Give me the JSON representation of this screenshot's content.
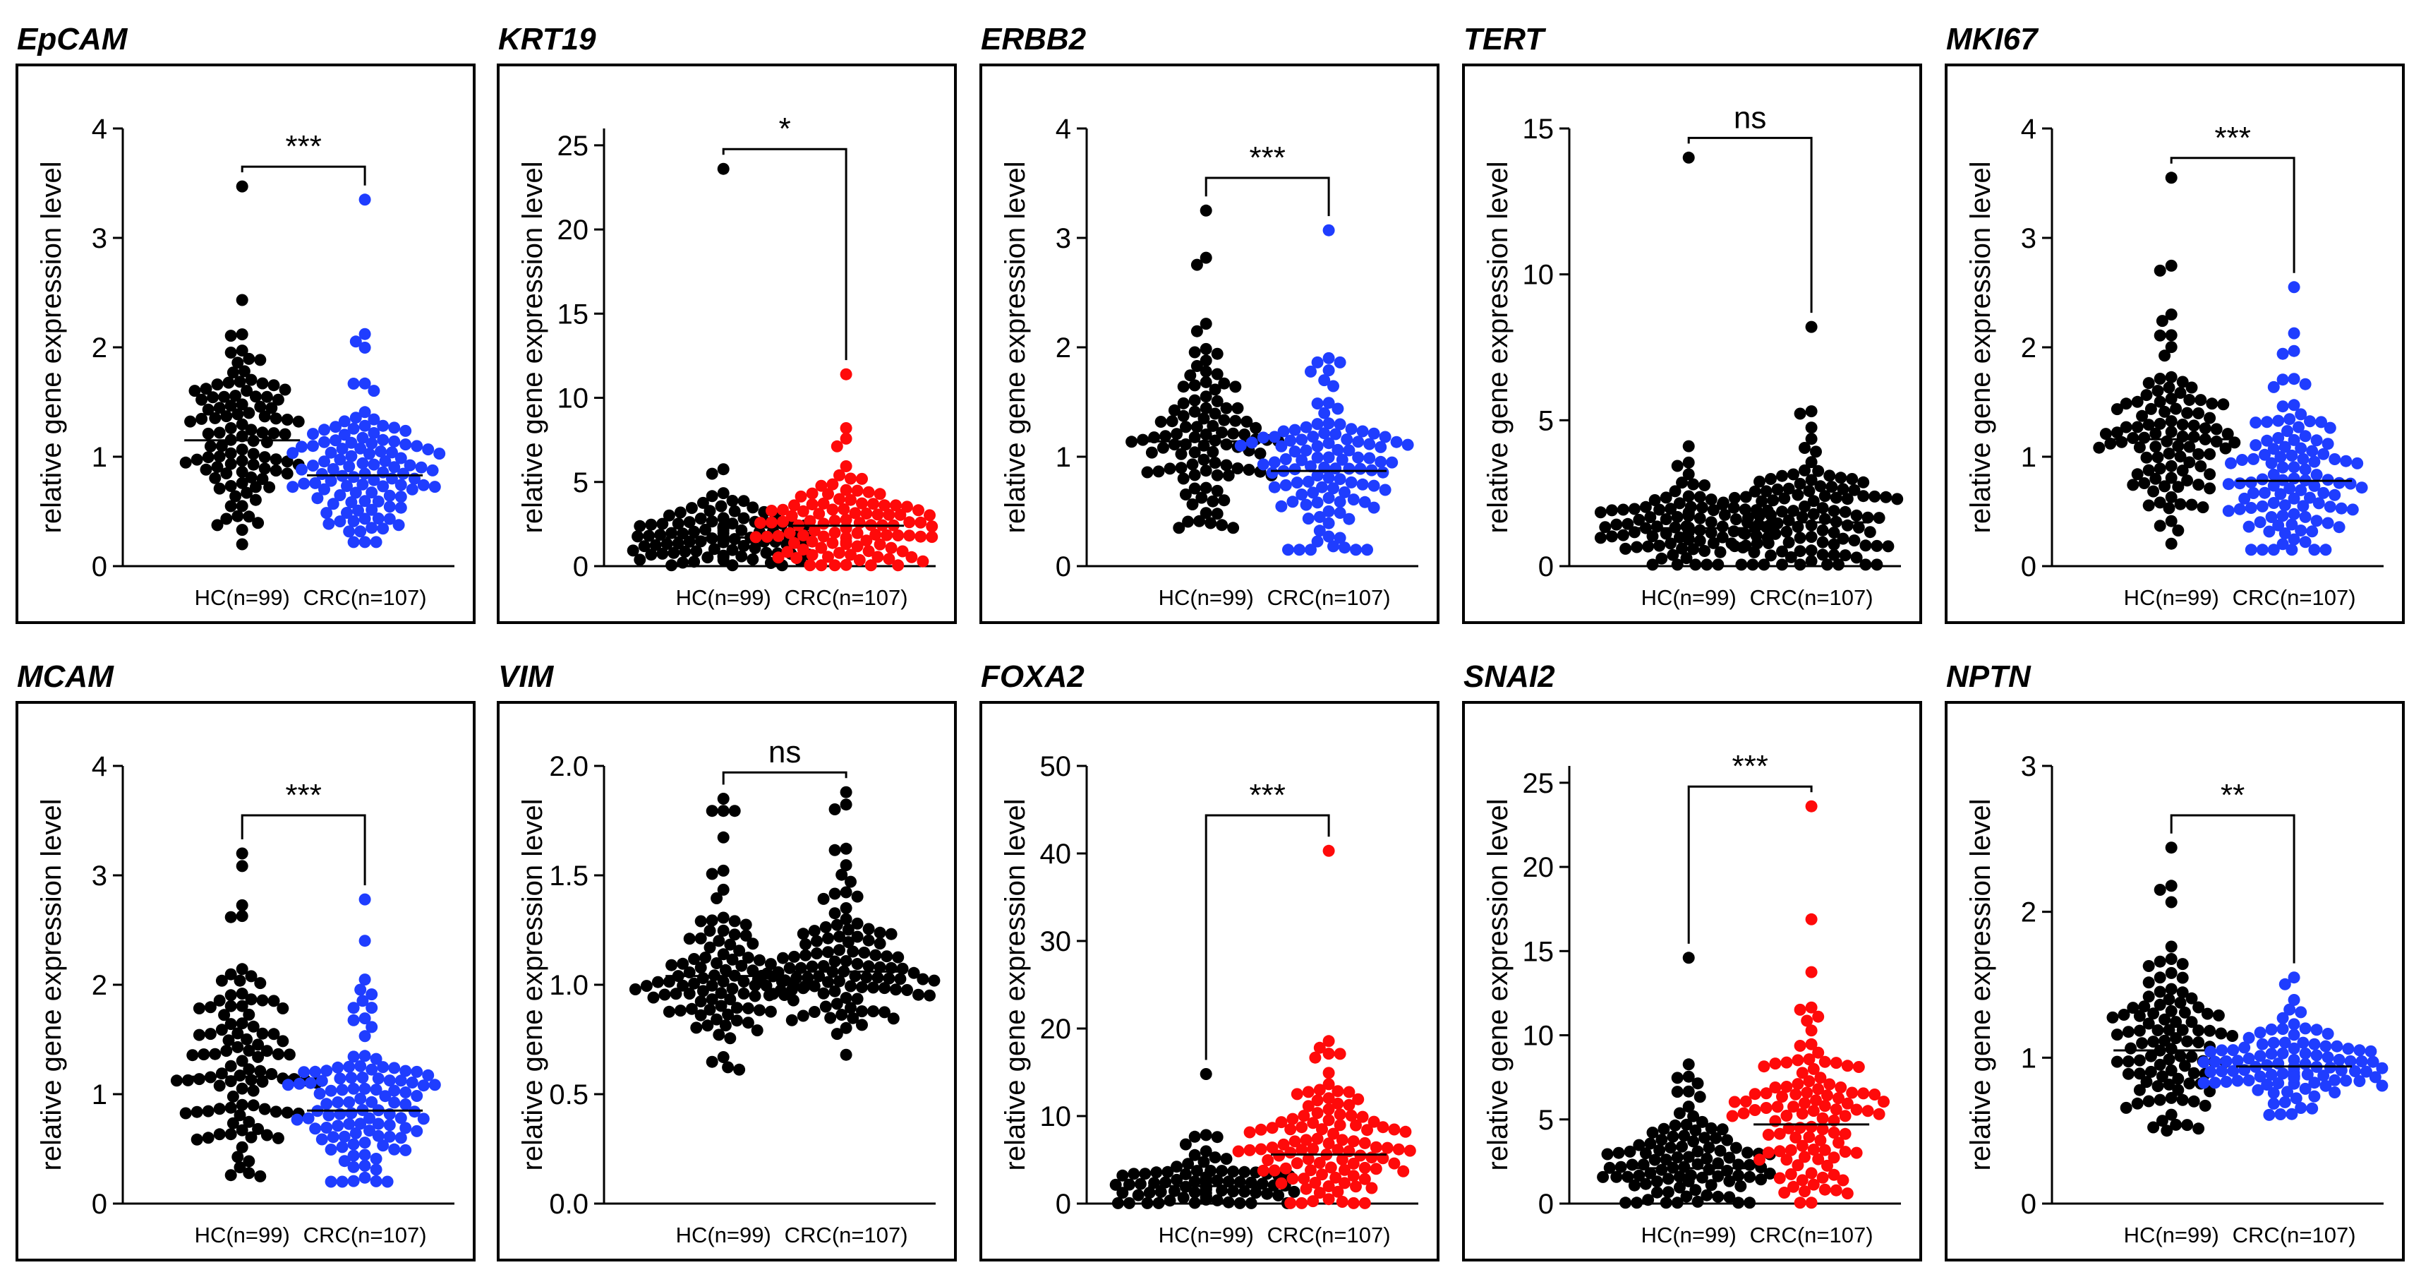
{
  "figure": {
    "background": "#ffffff"
  },
  "colors": {
    "hc": "#000000",
    "blue": "#1f3dff",
    "red": "#ff0a0a"
  },
  "chart_data": [
    {
      "gene": "EpCAM",
      "type": "scatter",
      "ylabel": "relative gene expression level",
      "ylim": [
        0,
        4
      ],
      "ticks": [
        "0",
        "1",
        "2",
        "3",
        "4"
      ],
      "significance": "***",
      "groups": [
        {
          "label": "HC(n=99)",
          "n": 99,
          "mean": 1.15,
          "spread": 0.42,
          "min": 0.2,
          "max": 3.47,
          "color": "#000000"
        },
        {
          "label": "CRC(n=107)",
          "n": 107,
          "mean": 0.83,
          "spread": 0.38,
          "min": 0.22,
          "max": 3.35,
          "color": "#1f3dff"
        }
      ]
    },
    {
      "gene": "KRT19",
      "type": "scatter",
      "ylabel": "relative gene expression level",
      "ylim": [
        0,
        26
      ],
      "ticks": [
        "0",
        "5",
        "10",
        "15",
        "20",
        "25"
      ],
      "significance": "*",
      "groups": [
        {
          "label": "HC(n=99)",
          "n": 99,
          "mean": 1.7,
          "spread": 1.1,
          "min": 0.05,
          "max": 23.6,
          "color": "#000000"
        },
        {
          "label": "CRC(n=107)",
          "n": 107,
          "mean": 2.4,
          "spread": 1.6,
          "min": 0.05,
          "max": 11.4,
          "color": "#ff0a0a"
        }
      ]
    },
    {
      "gene": "ERBB2",
      "type": "scatter",
      "ylabel": "relative gene expression level",
      "ylim": [
        0,
        4
      ],
      "ticks": [
        "0",
        "1",
        "2",
        "3",
        "4"
      ],
      "significance": "***",
      "groups": [
        {
          "label": "HC(n=99)",
          "n": 99,
          "mean": 1.14,
          "spread": 0.48,
          "min": 0.35,
          "max": 3.25,
          "color": "#000000"
        },
        {
          "label": "CRC(n=107)",
          "n": 107,
          "mean": 0.87,
          "spread": 0.42,
          "min": 0.15,
          "max": 3.07,
          "color": "#1f3dff"
        }
      ]
    },
    {
      "gene": "TERT",
      "type": "scatter",
      "ylabel": "relative gene expression level",
      "ylim": [
        0,
        15
      ],
      "ticks": [
        "0",
        "5",
        "10",
        "15"
      ],
      "significance": "ns",
      "groups": [
        {
          "label": "HC(n=99)",
          "n": 99,
          "mean": 1.3,
          "spread": 0.75,
          "min": 0.05,
          "max": 14.0,
          "color": "#000000"
        },
        {
          "label": "CRC(n=107)",
          "n": 107,
          "mean": 1.5,
          "spread": 1.3,
          "min": 0.05,
          "max": 8.2,
          "color": "#000000"
        }
      ]
    },
    {
      "gene": "MKI67",
      "type": "scatter",
      "ylabel": "relative gene expression level",
      "ylim": [
        0,
        4
      ],
      "ticks": [
        "0",
        "1",
        "2",
        "3",
        "4"
      ],
      "significance": "***",
      "groups": [
        {
          "label": "HC(n=99)",
          "n": 99,
          "mean": 1.16,
          "spread": 0.5,
          "min": 0.05,
          "max": 3.55,
          "color": "#000000"
        },
        {
          "label": "CRC(n=107)",
          "n": 107,
          "mean": 0.78,
          "spread": 0.45,
          "min": 0.15,
          "max": 2.55,
          "color": "#1f3dff"
        }
      ]
    },
    {
      "gene": "MCAM",
      "type": "scatter",
      "ylabel": "relative gene expression level",
      "ylim": [
        0,
        4
      ],
      "ticks": [
        "0",
        "1",
        "2",
        "3",
        "4"
      ],
      "significance": "***",
      "groups": [
        {
          "label": "HC(n=99)",
          "n": 99,
          "mean": 1.16,
          "spread": 0.55,
          "min": 0.2,
          "max": 3.2,
          "color": "#000000"
        },
        {
          "label": "CRC(n=107)",
          "n": 107,
          "mean": 0.85,
          "spread": 0.42,
          "min": 0.2,
          "max": 2.78,
          "color": "#1f3dff"
        }
      ]
    },
    {
      "gene": "VIM",
      "type": "scatter",
      "ylabel": "relative gene expression level",
      "ylim": [
        0,
        2
      ],
      "ticks": [
        "0.0",
        "0.5",
        "1.0",
        "1.5",
        "2.0"
      ],
      "significance": "ns",
      "groups": [
        {
          "label": "HC(n=99)",
          "n": 99,
          "mean": 1.04,
          "spread": 0.24,
          "min": 0.6,
          "max": 1.85,
          "color": "#000000"
        },
        {
          "label": "CRC(n=107)",
          "n": 107,
          "mean": 1.06,
          "spread": 0.22,
          "min": 0.68,
          "max": 1.88,
          "color": "#000000"
        }
      ]
    },
    {
      "gene": "FOXA2",
      "type": "scatter",
      "ylabel": "relative gene expression level",
      "ylim": [
        0,
        50
      ],
      "ticks": [
        "0",
        "10",
        "20",
        "30",
        "40",
        "50"
      ],
      "significance": "***",
      "groups": [
        {
          "label": "HC(n=99)",
          "n": 99,
          "mean": 2.0,
          "spread": 1.8,
          "min": 0.05,
          "max": 14.8,
          "color": "#000000"
        },
        {
          "label": "CRC(n=107)",
          "n": 107,
          "mean": 5.6,
          "spread": 4.2,
          "min": 0.05,
          "max": 40.3,
          "color": "#ff0a0a"
        }
      ]
    },
    {
      "gene": "SNAI2",
      "type": "scatter",
      "ylabel": "relative gene expression level",
      "ylim": [
        0,
        26
      ],
      "ticks": [
        "0",
        "5",
        "10",
        "15",
        "20",
        "25"
      ],
      "significance": "***",
      "groups": [
        {
          "label": "HC(n=99)",
          "n": 99,
          "mean": 2.1,
          "spread": 1.9,
          "min": 0.05,
          "max": 14.6,
          "color": "#000000"
        },
        {
          "label": "CRC(n=107)",
          "n": 107,
          "mean": 4.7,
          "spread": 3.4,
          "min": 0.05,
          "max": 23.6,
          "color": "#ff0a0a"
        }
      ]
    },
    {
      "gene": "NPTN",
      "type": "scatter",
      "ylabel": "relative gene expression level",
      "ylim": [
        0,
        3
      ],
      "ticks": [
        "0",
        "1",
        "2",
        "3"
      ],
      "significance": "**",
      "groups": [
        {
          "label": "HC(n=99)",
          "n": 99,
          "mean": 1.05,
          "spread": 0.33,
          "min": 0.5,
          "max": 2.44,
          "color": "#000000"
        },
        {
          "label": "CRC(n=107)",
          "n": 107,
          "mean": 0.94,
          "spread": 0.18,
          "min": 0.55,
          "max": 1.55,
          "color": "#1f3dff"
        }
      ]
    }
  ]
}
